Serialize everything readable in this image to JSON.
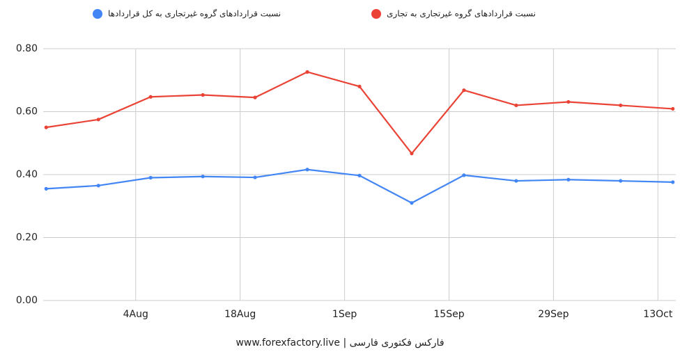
{
  "chart_data": {
    "type": "line",
    "x": [
      -8,
      -1,
      6,
      13,
      20,
      27,
      34,
      41,
      48,
      55,
      62,
      69,
      76
    ],
    "xlim": [
      -8.4,
      76.4
    ],
    "xticks": [
      {
        "value": 4,
        "label": "4Aug"
      },
      {
        "value": 18,
        "label": "18Aug"
      },
      {
        "value": 32,
        "label": "1Sep"
      },
      {
        "value": 46,
        "label": "15Sep"
      },
      {
        "value": 60,
        "label": "29Sep"
      },
      {
        "value": 74,
        "label": "13Oct"
      }
    ],
    "ylim": [
      0,
      0.8
    ],
    "yticks": [
      {
        "value": 0,
        "label": "0.00"
      },
      {
        "value": 0.2,
        "label": "0.20"
      },
      {
        "value": 0.4,
        "label": "0.40"
      },
      {
        "value": 0.6,
        "label": "0.60"
      },
      {
        "value": 0.8,
        "label": "0.80"
      }
    ],
    "grid": true,
    "legend": "top",
    "series": [
      {
        "name": "نسبت قراردادهای گروه غیرتجاری به تجاری",
        "color": "#ea4335",
        "values": [
          0.55,
          0.575,
          0.647,
          0.653,
          0.645,
          0.726,
          0.68,
          0.467,
          0.668,
          0.62,
          0.631,
          0.62,
          0.609
        ]
      },
      {
        "name": "نسبت قراردادهای گروه غیرتجاری به کل قراردادها",
        "color": "#4285f4",
        "values": [
          0.355,
          0.365,
          0.39,
          0.394,
          0.391,
          0.416,
          0.397,
          0.31,
          0.398,
          0.38,
          0.384,
          0.38,
          0.376
        ]
      }
    ],
    "caption": "www.forexfactory.live | فارکس فکتوری فارسی"
  }
}
